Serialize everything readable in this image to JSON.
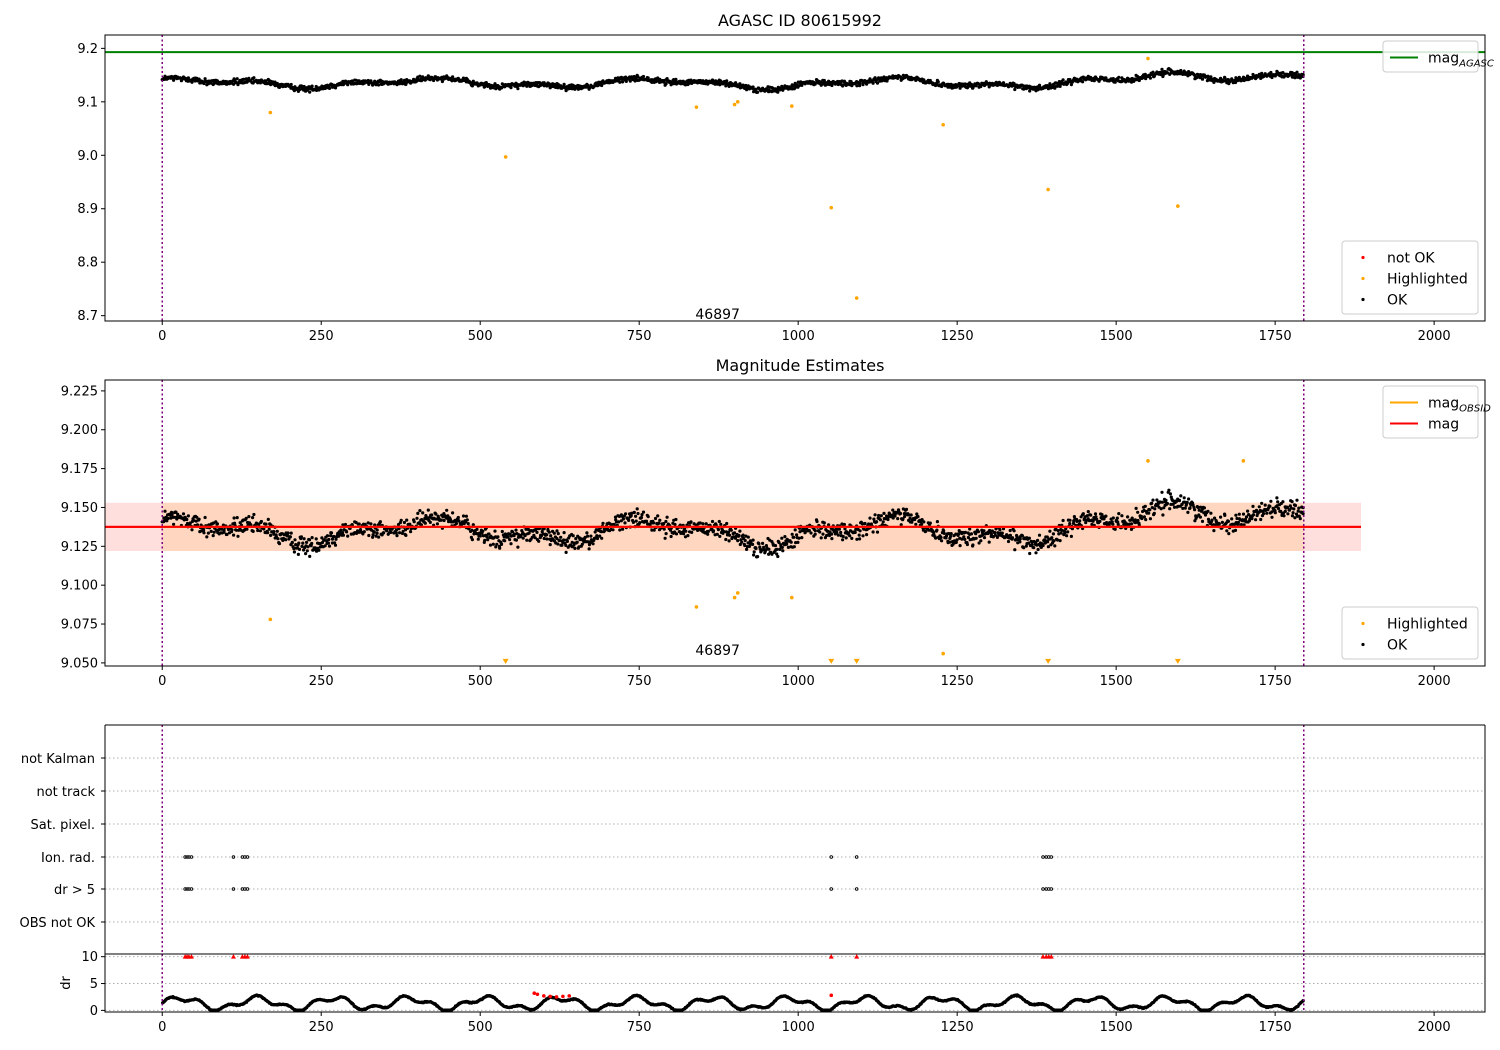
{
  "chart_data": [
    {
      "type": "scatter",
      "title": "AGASC ID 80615992",
      "xlabel": "",
      "ylabel": "",
      "xlim": [
        -90,
        2080
      ],
      "ylim": [
        8.69,
        9.225
      ],
      "xticks": [
        0,
        250,
        500,
        750,
        1000,
        1250,
        1500,
        1750,
        2000
      ],
      "yticks": [
        8.7,
        8.8,
        8.9,
        9.0,
        9.1,
        9.2
      ],
      "ytick_labels": [
        "8.7",
        "8.8",
        "8.9",
        "9.0",
        "9.1",
        "9.2"
      ],
      "vlines": [
        0,
        1795
      ],
      "hlines": [
        {
          "name": "mag_AGASC",
          "y": 9.193,
          "color": "#008000"
        }
      ],
      "annotations": [
        {
          "text": "46897",
          "x": 895,
          "y": 8.705
        }
      ],
      "series": [
        {
          "name": "OK",
          "color": "#000000",
          "n_points": 1790,
          "x_range": [
            0,
            1795
          ],
          "y_mean": 9.135,
          "y_spread": 0.014
        },
        {
          "name": "Highlighted",
          "color": "#ffa500",
          "x": [
            170,
            540,
            840,
            900,
            905,
            990,
            1052,
            1092,
            1228,
            1393,
            1550,
            1597
          ],
          "y": [
            9.08,
            8.997,
            9.09,
            9.095,
            9.1,
            9.092,
            8.902,
            8.733,
            9.057,
            8.936,
            9.181,
            8.905
          ]
        },
        {
          "name": "not OK",
          "color": "#ff0000",
          "x": [],
          "y": []
        }
      ],
      "legends": [
        {
          "position": "upper-right",
          "entries": [
            {
              "label": "mag",
              "sub": "AGASC",
              "color": "#008000",
              "kind": "line"
            }
          ]
        },
        {
          "position": "lower-right",
          "entries": [
            {
              "label": "not OK",
              "color": "#ff0000",
              "kind": "dot"
            },
            {
              "label": "Highlighted",
              "color": "#ffa500",
              "kind": "dot"
            },
            {
              "label": "OK",
              "color": "#000000",
              "kind": "dot"
            }
          ]
        }
      ]
    },
    {
      "type": "scatter",
      "title": "Magnitude Estimates",
      "xlabel": "",
      "ylabel": "",
      "xlim": [
        -90,
        2080
      ],
      "ylim": [
        9.048,
        9.232
      ],
      "xticks": [
        0,
        250,
        500,
        750,
        1000,
        1250,
        1500,
        1750,
        2000
      ],
      "yticks": [
        9.05,
        9.075,
        9.1,
        9.125,
        9.15,
        9.175,
        9.2,
        9.225
      ],
      "ytick_labels": [
        "9.050",
        "9.075",
        "9.100",
        "9.125",
        "9.150",
        "9.175",
        "9.200",
        "9.225"
      ],
      "vlines": [
        0,
        1795
      ],
      "bands": [
        {
          "x": [
            -90,
            1885
          ],
          "y": [
            9.122,
            9.153
          ],
          "color": "#ffcccc"
        }
      ],
      "hlines": [
        {
          "name": "mag",
          "y": 9.1375,
          "color": "#ff0000",
          "x": [
            -90,
            1885
          ]
        }
      ],
      "annotations": [
        {
          "text": "46897",
          "x": 895,
          "y": 9.059
        }
      ],
      "series": [
        {
          "name": "OK",
          "color": "#000000",
          "n_points": 1790,
          "x_range": [
            0,
            1795
          ],
          "y_mean": 9.135,
          "y_spread": 0.014
        },
        {
          "name": "Highlighted",
          "color": "#ffa500",
          "x": [
            170,
            840,
            900,
            905,
            990,
            1228,
            1550,
            1700
          ],
          "y": [
            9.078,
            9.086,
            9.092,
            9.095,
            9.092,
            9.056,
            9.18,
            9.18
          ]
        },
        {
          "name": "Highlighted (below range)",
          "color": "#ffa500",
          "marker": "triangle-down",
          "x": [
            540,
            1052,
            1092,
            1393,
            1597
          ],
          "y": [
            9.05,
            9.05,
            9.05,
            9.05,
            9.05
          ]
        }
      ],
      "legends": [
        {
          "position": "upper-right",
          "entries": [
            {
              "label": "mag",
              "sub": "OBSID",
              "color": "#ffa500",
              "kind": "line"
            },
            {
              "label": "mag",
              "color": "#ff0000",
              "kind": "line"
            }
          ]
        },
        {
          "position": "lower-right",
          "entries": [
            {
              "label": "Highlighted",
              "color": "#ffa500",
              "kind": "dot"
            },
            {
              "label": "OK",
              "color": "#000000",
              "kind": "dot"
            }
          ]
        }
      ]
    },
    {
      "type": "scatter",
      "title": "",
      "xlabel": "",
      "ylabel": "",
      "xlim": [
        -90,
        2080
      ],
      "flag_rows": [
        "not Kalman",
        "not track",
        "Sat. pixel.",
        "Ion. rad.",
        "dr > 5",
        "OBS not OK"
      ],
      "flag_points": {
        "Ion. rad.": [
          36,
          39,
          42,
          46,
          112,
          126,
          130,
          134,
          1052,
          1092,
          1385,
          1390,
          1394,
          1398
        ],
        "dr > 5": [
          36,
          39,
          42,
          46,
          112,
          126,
          130,
          134,
          1052,
          1092,
          1385,
          1390,
          1394,
          1398
        ]
      }
    },
    {
      "type": "scatter",
      "title": "",
      "xlabel": "",
      "ylabel": "dr",
      "xlim": [
        -90,
        2080
      ],
      "ylim": [
        -0.3,
        10.5
      ],
      "yticks": [
        0,
        5,
        10
      ],
      "ytick_labels": [
        "0",
        "5",
        "10"
      ],
      "vlines": [
        0,
        1795
      ],
      "series": [
        {
          "name": "dr OK",
          "color": "#000000",
          "n_points": 1790,
          "x_range": [
            0,
            1795
          ],
          "y_min": 0,
          "y_max": 3
        },
        {
          "name": "dr not OK",
          "color": "#ff0000",
          "x": [
            585,
            590,
            600,
            610,
            620,
            630,
            640,
            1052
          ],
          "y": [
            3.2,
            3.0,
            2.7,
            2.6,
            2.5,
            2.6,
            2.7,
            2.8
          ]
        },
        {
          "name": "dr clipped",
          "color": "#ff0000",
          "marker": "triangle-up",
          "x": [
            36,
            39,
            42,
            46,
            112,
            126,
            130,
            134,
            1052,
            1092,
            1385,
            1390,
            1394,
            1398
          ],
          "y": [
            10,
            10,
            10,
            10,
            10,
            10,
            10,
            10,
            10,
            10,
            10,
            10,
            10,
            10
          ]
        }
      ]
    }
  ]
}
